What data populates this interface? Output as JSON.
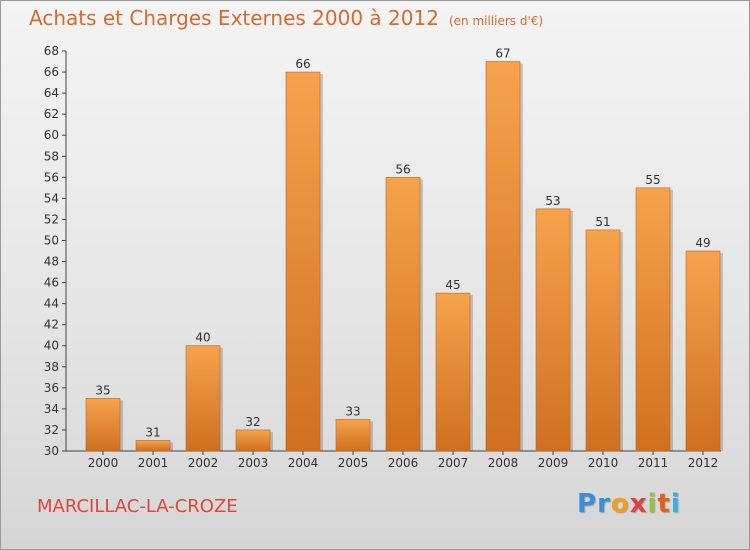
{
  "title": "Achats et Charges Externes 2000 à 2012",
  "subtitle": "(en milliers d'€)",
  "town": "MARCILLAC-LA-CROZE",
  "logo": {
    "letters": [
      "P",
      "r",
      "o",
      "x",
      "i",
      "t",
      "i"
    ],
    "colors": [
      "#3a8fd8",
      "#3a8fd8",
      "#f0a020",
      "#e04040",
      "#9ac040",
      "#e06020",
      "#3ab0e0"
    ]
  },
  "colors": {
    "bar_light": "#f6a34c",
    "bar_dark": "#d0701f",
    "title": "#d86a2a",
    "town": "#e0473a"
  },
  "chart_data": {
    "type": "bar",
    "categories": [
      "2000",
      "2001",
      "2002",
      "2003",
      "2004",
      "2005",
      "2006",
      "2007",
      "2008",
      "2009",
      "2010",
      "2011",
      "2012"
    ],
    "values": [
      35,
      31,
      40,
      32,
      66,
      33,
      56,
      45,
      67,
      53,
      51,
      55,
      49
    ],
    "title": "Achats et Charges Externes 2000 à 2012",
    "xlabel": "",
    "ylabel": "",
    "ylim": [
      30,
      68
    ],
    "ytick_step": 2,
    "grid": false
  }
}
